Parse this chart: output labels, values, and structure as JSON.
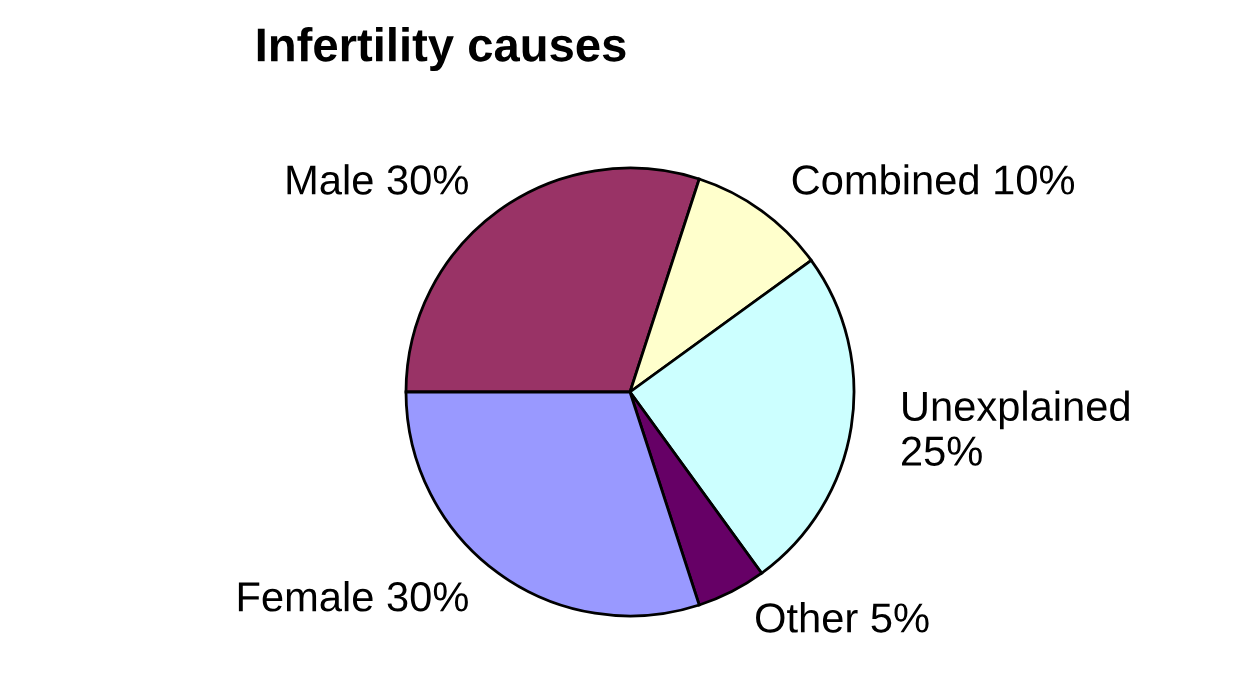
{
  "chart_data": {
    "type": "pie",
    "title": "Infertility causes",
    "categories": [
      "Male",
      "Combined",
      "Unexplained",
      "Other",
      "Female"
    ],
    "values": [
      30,
      10,
      25,
      5,
      30
    ],
    "value_labels": [
      "30%",
      "10%",
      "25%",
      "5%",
      "30%"
    ],
    "colors": [
      "#993366",
      "#ffffcc",
      "#ccffff",
      "#660066",
      "#9999ff"
    ],
    "legend": false
  }
}
